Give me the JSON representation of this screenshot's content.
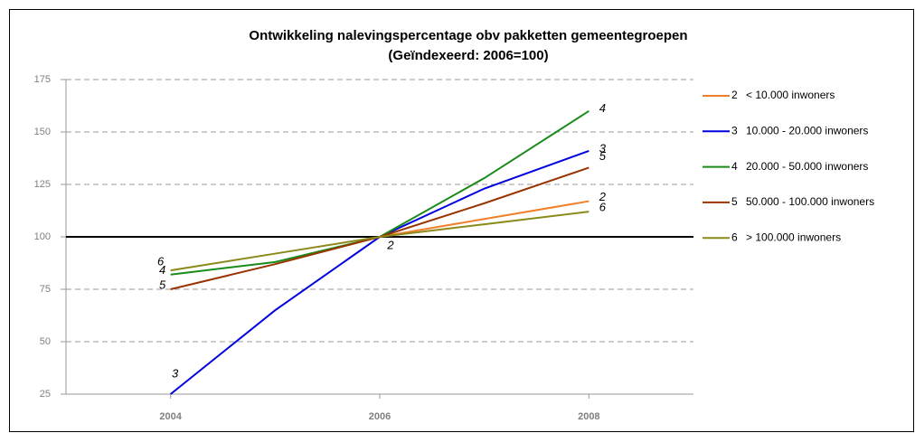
{
  "chart_data": {
    "type": "line",
    "title": "Ontwikkeling nalevingspercentage obv pakketten gemeentegroepen",
    "subtitle": "(Geïndexeerd: 2006=100)",
    "x": [
      2004,
      2005,
      2006,
      2007,
      2008
    ],
    "xlim": [
      2003,
      2009
    ],
    "xticks": [
      2004,
      2006,
      2008
    ],
    "ylim": [
      25,
      175
    ],
    "yticks": [
      25,
      50,
      75,
      100,
      125,
      150,
      175
    ],
    "grid": true,
    "reference_line": 100,
    "legend": "right",
    "series": [
      {
        "id": "2",
        "name": "< 10.000 inwoners",
        "color": "#f07f2a",
        "values": [
          null,
          null,
          100,
          108.5,
          117
        ]
      },
      {
        "id": "3",
        "name": "10.000 - 20.000 inwoners",
        "color": "#0000e0",
        "values": [
          25,
          65,
          100,
          123,
          141
        ]
      },
      {
        "id": "4",
        "name": "20.000 - 50.000 inwoners",
        "color": "#1a8a1a",
        "values": [
          82,
          88,
          100,
          128,
          160
        ]
      },
      {
        "id": "5",
        "name": "50.000 - 100.000 inwoners",
        "color": "#993300",
        "values": [
          75,
          87,
          100,
          116,
          133
        ]
      },
      {
        "id": "6",
        "name": "> 100.000 inwoners",
        "color": "#8a8a1a",
        "values": [
          84,
          92,
          100,
          106,
          112
        ]
      }
    ]
  }
}
